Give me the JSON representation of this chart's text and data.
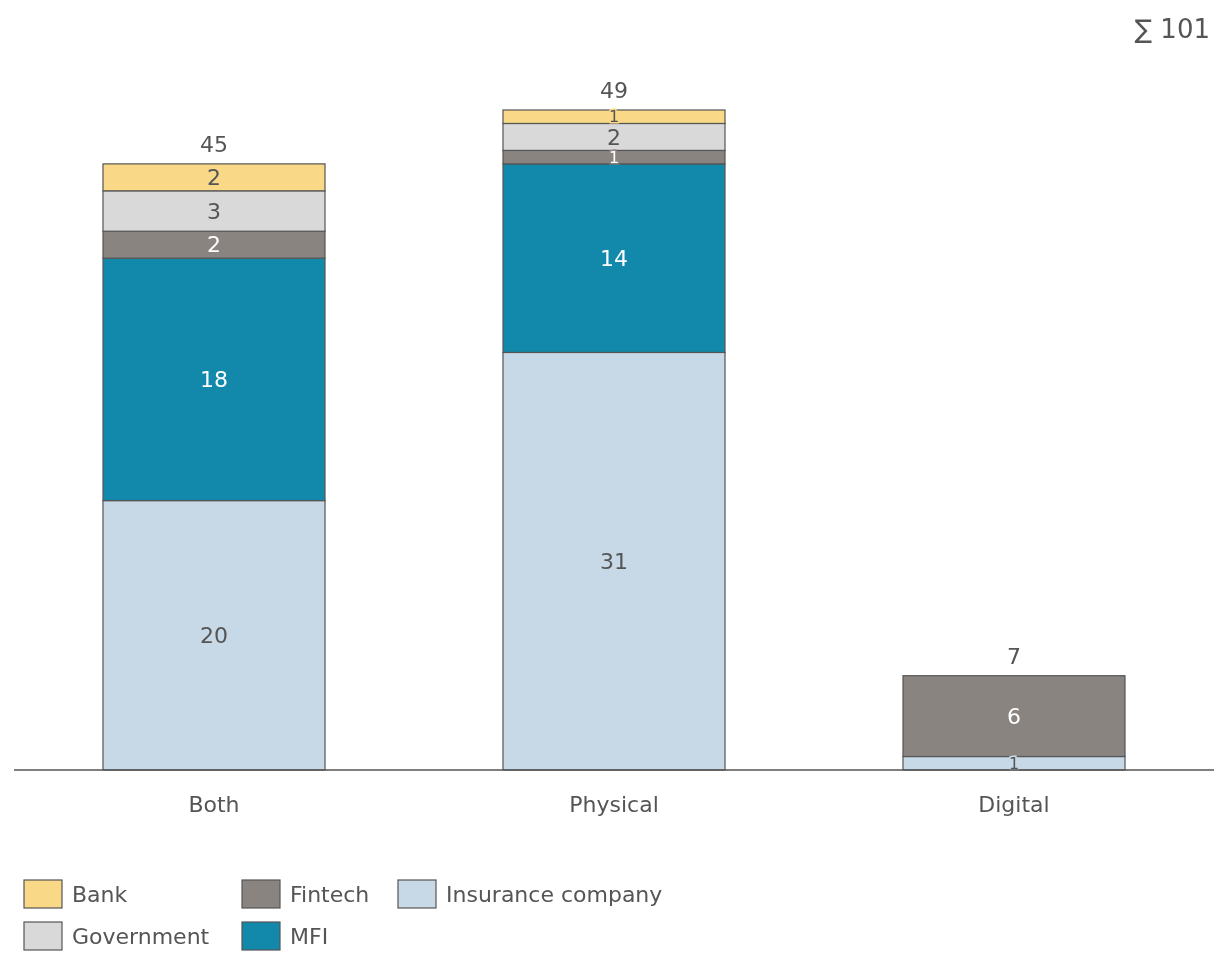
{
  "chart_data": {
    "type": "bar",
    "stacked": true,
    "categories": [
      "Both",
      "Physical",
      "Digital"
    ],
    "series": [
      {
        "name": "Insurance company",
        "color": "#c7d9e6",
        "values": [
          20,
          31,
          1
        ]
      },
      {
        "name": "MFI",
        "color": "#1289aa",
        "values": [
          18,
          14,
          null
        ]
      },
      {
        "name": "Fintech",
        "color": "#8a8481",
        "values": [
          2,
          1,
          6
        ]
      },
      {
        "name": "Government",
        "color": "#d9d9d9",
        "values": [
          3,
          2,
          null
        ]
      },
      {
        "name": "Bank",
        "color": "#f9d888",
        "values": [
          2,
          1,
          null
        ]
      }
    ],
    "data_labels": true,
    "totals": [
      "45",
      "49",
      "7"
    ],
    "annotations": [
      "∑ 101"
    ],
    "legend": "bottom left"
  }
}
